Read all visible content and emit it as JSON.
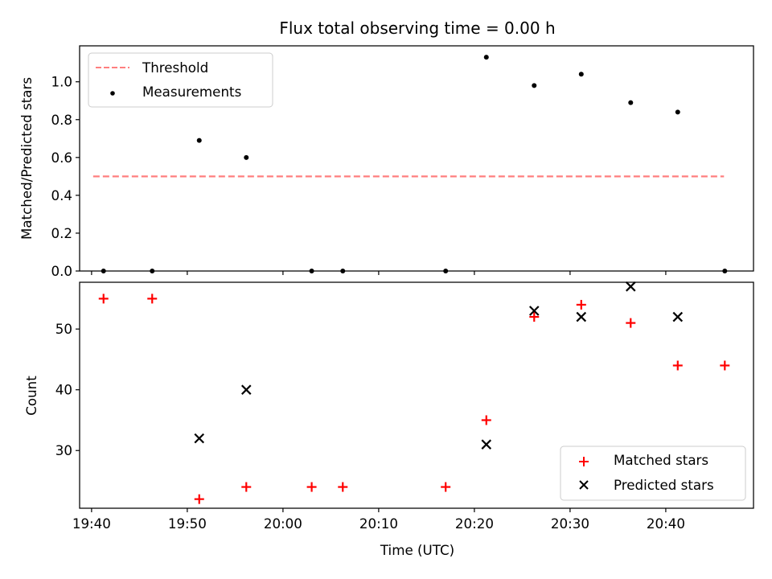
{
  "chart_data": [
    {
      "type": "scatter",
      "title": "Flux total observing time = 0.00 h",
      "ylabel": "Matched/Predicted stars",
      "xlabel": "",
      "xlim": [
        "19:38:45",
        "20:49:10"
      ],
      "ylim": [
        0,
        1.19
      ],
      "yticks": [
        0,
        0.2,
        0.4,
        0.6,
        0.8,
        1.0
      ],
      "ytick_labels": [
        "0.0",
        "0.2",
        "0.4",
        "0.6",
        "0.8",
        "1.0"
      ],
      "grid": false,
      "legend_position": "top-left",
      "series": [
        {
          "name": "Threshold",
          "kind": "line",
          "style": "dashed",
          "color": "#ff7f7f",
          "points": [
            [
              "19:40:10",
              0.5
            ],
            [
              "20:46:05",
              0.5
            ]
          ]
        },
        {
          "name": "Measurements",
          "kind": "scatter",
          "marker": "dot",
          "color": "#000000",
          "points": [
            [
              "19:41:15",
              0.0
            ],
            [
              "19:46:20",
              0.0
            ],
            [
              "19:51:15",
              0.69
            ],
            [
              "19:56:10",
              0.6
            ],
            [
              "20:03:00",
              0.0
            ],
            [
              "20:06:15",
              0.0
            ],
            [
              "20:17:00",
              0.0
            ],
            [
              "20:21:15",
              1.13
            ],
            [
              "20:26:15",
              0.98
            ],
            [
              "20:31:10",
              1.04
            ],
            [
              "20:36:20",
              0.89
            ],
            [
              "20:41:15",
              0.84
            ],
            [
              "20:46:10",
              0.0
            ]
          ]
        }
      ]
    },
    {
      "type": "scatter",
      "title": "",
      "xlabel": "Time (UTC)",
      "ylabel": "Count",
      "xlim": [
        "19:38:45",
        "20:49:10"
      ],
      "xticks": [
        "19:40",
        "19:50",
        "20:00",
        "20:10",
        "20:20",
        "20:30",
        "20:40"
      ],
      "ylim": [
        20.5,
        57.7
      ],
      "yticks": [
        30,
        40,
        50
      ],
      "ytick_labels": [
        "30",
        "40",
        "50"
      ],
      "grid": false,
      "legend_position": "bottom-right",
      "series": [
        {
          "name": "Matched stars",
          "marker": "plus",
          "color": "#ff0000",
          "points": [
            [
              "19:41:15",
              55
            ],
            [
              "19:46:20",
              55
            ],
            [
              "19:51:15",
              22
            ],
            [
              "19:56:10",
              24
            ],
            [
              "20:03:00",
              24
            ],
            [
              "20:06:15",
              24
            ],
            [
              "20:17:00",
              24
            ],
            [
              "20:21:15",
              35
            ],
            [
              "20:26:15",
              52
            ],
            [
              "20:31:10",
              54
            ],
            [
              "20:36:20",
              51
            ],
            [
              "20:41:15",
              44
            ],
            [
              "20:46:10",
              44
            ]
          ]
        },
        {
          "name": "Predicted stars",
          "marker": "x",
          "color": "#000000",
          "points": [
            [
              "19:51:15",
              32
            ],
            [
              "19:56:10",
              40
            ],
            [
              "20:21:15",
              31
            ],
            [
              "20:26:15",
              53
            ],
            [
              "20:31:10",
              52
            ],
            [
              "20:36:20",
              57
            ],
            [
              "20:41:15",
              52
            ]
          ]
        }
      ]
    }
  ]
}
